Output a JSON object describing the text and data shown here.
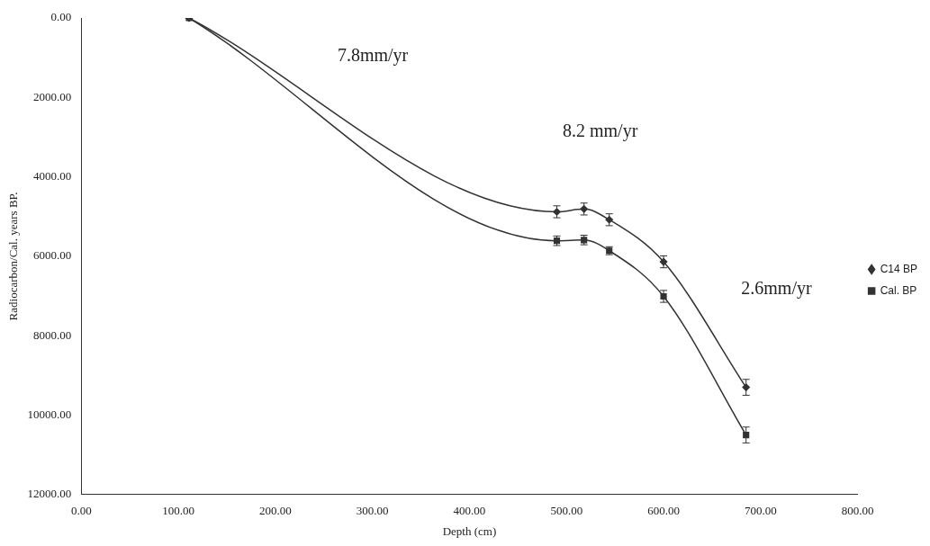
{
  "chart_data": {
    "type": "line",
    "xlabel": "Depth (cm)",
    "ylabel": "Radiocarbon/Cal. years BP.",
    "xlim": [
      0,
      800
    ],
    "xticks": [
      {
        "value": 0,
        "label": "0.00"
      },
      {
        "value": 100,
        "label": "100.00"
      },
      {
        "value": 200,
        "label": "200.00"
      },
      {
        "value": 300,
        "label": "300.00"
      },
      {
        "value": 400,
        "label": "400.00"
      },
      {
        "value": 500,
        "label": "500.00"
      },
      {
        "value": 600,
        "label": "600.00"
      },
      {
        "value": 700,
        "label": "700.00"
      },
      {
        "value": 800,
        "label": "800.00"
      }
    ],
    "ylim": [
      12000,
      0
    ],
    "yticks": [
      {
        "value": 0,
        "label": "0.00"
      },
      {
        "value": 2000,
        "label": "2000.00"
      },
      {
        "value": 4000,
        "label": "4000.00"
      },
      {
        "value": 6000,
        "label": "6000.00"
      },
      {
        "value": 8000,
        "label": "8000.00"
      },
      {
        "value": 10000,
        "label": "10000.00"
      },
      {
        "value": 12000,
        "label": "12000.00"
      }
    ],
    "x": [
      111,
      490,
      518,
      544,
      600,
      685
    ],
    "series": [
      {
        "name": "C14 BP",
        "color": "#333333",
        "marker": "diamond",
        "values": [
          0,
          4880,
          4810,
          5080,
          6140,
          9300
        ],
        "errors": [
          null,
          150,
          150,
          150,
          150,
          200
        ]
      },
      {
        "name": "Cal. BP",
        "color": "#333333",
        "marker": "square",
        "values": [
          0,
          5610,
          5590,
          5860,
          7010,
          10500
        ],
        "errors": [
          null,
          120,
          120,
          100,
          150,
          200
        ]
      }
    ],
    "annotations": [
      "7.8mm/yr",
      "8.2 mm/yr",
      "2.6mm/yr"
    ],
    "grid": false,
    "legend": "right",
    "line_style": "solid"
  }
}
